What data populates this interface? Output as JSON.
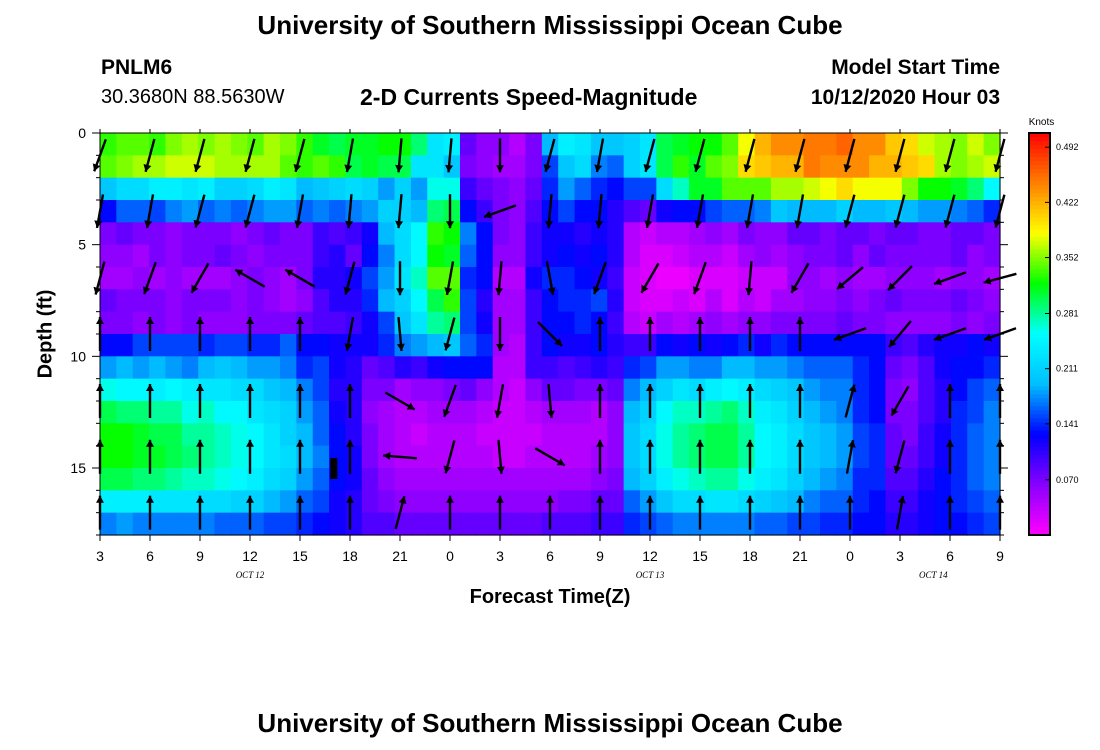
{
  "header": {
    "title": "University of Southern Mississippi Ocean Cube",
    "station_id": "PNLM6",
    "station_coords": "30.3680N 88.5630W",
    "plot_name": "2-D Currents Speed-Magnitude",
    "model_label": "Model Start Time",
    "model_time": "10/12/2020 Hour 03"
  },
  "footer": {
    "title": "University of Southern Mississippi Ocean Cube"
  },
  "chart_data": {
    "type": "heatmap",
    "title": "2-D Currents Speed-Magnitude",
    "xlabel": "Forecast Time(Z)",
    "ylabel": "Depth (ft)",
    "x_ticks": [
      "3",
      "6",
      "9",
      "12",
      "15",
      "18",
      "21",
      "0",
      "3",
      "6",
      "9",
      "12",
      "15",
      "18",
      "21",
      "0",
      "3",
      "6",
      "9"
    ],
    "x_range_hours": [
      0,
      54
    ],
    "date_labels": [
      {
        "text": "OCT 12",
        "hour": 9
      },
      {
        "text": "OCT 13",
        "hour": 33
      },
      {
        "text": "OCT 14",
        "hour": 50
      }
    ],
    "y_ticks": [
      0,
      5,
      10,
      15
    ],
    "ylim": [
      0,
      18
    ],
    "y_inverted": true,
    "colorbar": {
      "units": "Knots",
      "ticks": [
        "0.492",
        "0.422",
        "0.352",
        "0.281",
        "0.211",
        "0.141",
        "0.070"
      ],
      "range": [
        0.0,
        0.51
      ],
      "colors": [
        "#ff00ff",
        "#8800ff",
        "#0000ff",
        "#00bfff",
        "#00ffff",
        "#00ff00",
        "#ffff00",
        "#ff8000",
        "#ff0000"
      ]
    },
    "depths": [
      0.5,
      1.5,
      2.5,
      3.5,
      4.5,
      5.5,
      6.5,
      7.5,
      8.5,
      9.5,
      10.5,
      11.5,
      12.5,
      13.5,
      14.5,
      15.5,
      16.5,
      17.5
    ],
    "hours": [
      0,
      1,
      2,
      3,
      4,
      5,
      6,
      7,
      8,
      9,
      10,
      11,
      12,
      13,
      14,
      15,
      16,
      17,
      18,
      19,
      20,
      21,
      22,
      23,
      24,
      25,
      26,
      27,
      28,
      29,
      30,
      31,
      32,
      33,
      34,
      35,
      36,
      37,
      38,
      39,
      40,
      41,
      42,
      43,
      44,
      45,
      46,
      47,
      48,
      49,
      50,
      51,
      52,
      53,
      54
    ],
    "speed_knots": [
      [
        0.33,
        0.34,
        0.34,
        0.33,
        0.35,
        0.36,
        0.35,
        0.36,
        0.35,
        0.34,
        0.36,
        0.35,
        0.33,
        0.31,
        0.3,
        0.31,
        0.31,
        0.32,
        0.32,
        0.29,
        0.23,
        0.24,
        0.08,
        0.06,
        0.06,
        0.04,
        0.07,
        0.19,
        0.24,
        0.23,
        0.2,
        0.2,
        0.21,
        0.23,
        0.3,
        0.31,
        0.32,
        0.32,
        0.34,
        0.38,
        0.42,
        0.44,
        0.44,
        0.45,
        0.45,
        0.46,
        0.44,
        0.44,
        0.41,
        0.4,
        0.37,
        0.36,
        0.35,
        0.37,
        0.35
      ],
      [
        0.34,
        0.35,
        0.36,
        0.36,
        0.37,
        0.37,
        0.37,
        0.36,
        0.36,
        0.36,
        0.36,
        0.34,
        0.33,
        0.34,
        0.33,
        0.3,
        0.31,
        0.3,
        0.3,
        0.23,
        0.23,
        0.2,
        0.07,
        0.06,
        0.05,
        0.05,
        0.07,
        0.15,
        0.2,
        0.22,
        0.17,
        0.16,
        0.21,
        0.23,
        0.3,
        0.33,
        0.31,
        0.34,
        0.35,
        0.4,
        0.41,
        0.42,
        0.42,
        0.45,
        0.44,
        0.44,
        0.44,
        0.42,
        0.42,
        0.41,
        0.4,
        0.36,
        0.35,
        0.36,
        0.37
      ],
      [
        0.2,
        0.22,
        0.22,
        0.24,
        0.24,
        0.23,
        0.24,
        0.21,
        0.21,
        0.22,
        0.24,
        0.23,
        0.19,
        0.2,
        0.21,
        0.22,
        0.21,
        0.18,
        0.21,
        0.18,
        0.26,
        0.26,
        0.1,
        0.08,
        0.07,
        0.06,
        0.08,
        0.14,
        0.18,
        0.16,
        0.14,
        0.13,
        0.15,
        0.15,
        0.22,
        0.27,
        0.31,
        0.31,
        0.34,
        0.34,
        0.34,
        0.36,
        0.36,
        0.37,
        0.38,
        0.4,
        0.38,
        0.38,
        0.38,
        0.35,
        0.32,
        0.32,
        0.31,
        0.29,
        0.25
      ],
      [
        0.13,
        0.16,
        0.16,
        0.15,
        0.17,
        0.18,
        0.16,
        0.17,
        0.16,
        0.17,
        0.18,
        0.18,
        0.16,
        0.17,
        0.16,
        0.17,
        0.18,
        0.21,
        0.21,
        0.19,
        0.29,
        0.3,
        0.13,
        0.1,
        0.07,
        0.06,
        0.09,
        0.13,
        0.15,
        0.13,
        0.13,
        0.11,
        0.09,
        0.08,
        0.12,
        0.13,
        0.13,
        0.15,
        0.16,
        0.16,
        0.17,
        0.2,
        0.19,
        0.19,
        0.19,
        0.21,
        0.19,
        0.19,
        0.2,
        0.19,
        0.18,
        0.18,
        0.17,
        0.16,
        0.14
      ],
      [
        0.07,
        0.08,
        0.07,
        0.07,
        0.06,
        0.07,
        0.07,
        0.07,
        0.06,
        0.07,
        0.08,
        0.07,
        0.07,
        0.1,
        0.09,
        0.1,
        0.12,
        0.19,
        0.22,
        0.25,
        0.33,
        0.32,
        0.17,
        0.13,
        0.07,
        0.06,
        0.1,
        0.12,
        0.12,
        0.11,
        0.12,
        0.11,
        0.04,
        0.03,
        0.04,
        0.04,
        0.05,
        0.06,
        0.05,
        0.07,
        0.06,
        0.06,
        0.08,
        0.08,
        0.07,
        0.08,
        0.08,
        0.07,
        0.08,
        0.08,
        0.07,
        0.07,
        0.08,
        0.08,
        0.07
      ],
      [
        0.06,
        0.06,
        0.05,
        0.07,
        0.06,
        0.07,
        0.07,
        0.08,
        0.07,
        0.06,
        0.07,
        0.07,
        0.07,
        0.1,
        0.11,
        0.08,
        0.13,
        0.17,
        0.22,
        0.25,
        0.32,
        0.31,
        0.16,
        0.13,
        0.06,
        0.06,
        0.1,
        0.12,
        0.13,
        0.12,
        0.13,
        0.11,
        0.04,
        0.02,
        0.02,
        0.03,
        0.04,
        0.04,
        0.03,
        0.05,
        0.06,
        0.05,
        0.06,
        0.07,
        0.07,
        0.08,
        0.06,
        0.08,
        0.07,
        0.07,
        0.07,
        0.07,
        0.08,
        0.06,
        0.07
      ],
      [
        0.05,
        0.05,
        0.06,
        0.05,
        0.06,
        0.05,
        0.05,
        0.05,
        0.06,
        0.07,
        0.06,
        0.05,
        0.07,
        0.11,
        0.11,
        0.12,
        0.15,
        0.18,
        0.23,
        0.27,
        0.34,
        0.34,
        0.14,
        0.13,
        0.04,
        0.04,
        0.12,
        0.14,
        0.14,
        0.13,
        0.12,
        0.1,
        0.03,
        0.02,
        0.01,
        0.01,
        0.02,
        0.02,
        0.02,
        0.03,
        0.03,
        0.03,
        0.06,
        0.06,
        0.05,
        0.06,
        0.05,
        0.05,
        0.06,
        0.06,
        0.06,
        0.05,
        0.06,
        0.06,
        0.05
      ],
      [
        0.08,
        0.07,
        0.07,
        0.07,
        0.06,
        0.07,
        0.07,
        0.07,
        0.06,
        0.07,
        0.06,
        0.05,
        0.06,
        0.09,
        0.11,
        0.11,
        0.14,
        0.19,
        0.21,
        0.25,
        0.3,
        0.33,
        0.15,
        0.11,
        0.05,
        0.05,
        0.1,
        0.13,
        0.14,
        0.14,
        0.15,
        0.11,
        0.03,
        0.02,
        0.02,
        0.03,
        0.02,
        0.04,
        0.02,
        0.04,
        0.03,
        0.05,
        0.05,
        0.06,
        0.06,
        0.07,
        0.06,
        0.07,
        0.08,
        0.07,
        0.07,
        0.07,
        0.08,
        0.07,
        0.06
      ],
      [
        0.07,
        0.07,
        0.06,
        0.07,
        0.06,
        0.07,
        0.06,
        0.06,
        0.06,
        0.07,
        0.07,
        0.07,
        0.08,
        0.09,
        0.09,
        0.1,
        0.12,
        0.15,
        0.2,
        0.23,
        0.28,
        0.29,
        0.15,
        0.12,
        0.05,
        0.05,
        0.1,
        0.13,
        0.13,
        0.14,
        0.13,
        0.1,
        0.04,
        0.03,
        0.05,
        0.04,
        0.05,
        0.06,
        0.05,
        0.06,
        0.06,
        0.07,
        0.07,
        0.07,
        0.07,
        0.08,
        0.07,
        0.07,
        0.06,
        0.06,
        0.06,
        0.06,
        0.07,
        0.06,
        0.07
      ],
      [
        0.13,
        0.13,
        0.15,
        0.15,
        0.15,
        0.15,
        0.14,
        0.15,
        0.15,
        0.14,
        0.14,
        0.16,
        0.13,
        0.13,
        0.12,
        0.12,
        0.12,
        0.14,
        0.17,
        0.18,
        0.19,
        0.2,
        0.16,
        0.14,
        0.05,
        0.04,
        0.1,
        0.13,
        0.12,
        0.12,
        0.13,
        0.11,
        0.1,
        0.1,
        0.13,
        0.12,
        0.13,
        0.12,
        0.13,
        0.14,
        0.12,
        0.14,
        0.13,
        0.13,
        0.13,
        0.13,
        0.13,
        0.13,
        0.1,
        0.09,
        0.11,
        0.12,
        0.12,
        0.13,
        0.12
      ],
      [
        0.18,
        0.19,
        0.18,
        0.19,
        0.18,
        0.17,
        0.19,
        0.2,
        0.19,
        0.18,
        0.18,
        0.17,
        0.14,
        0.15,
        0.12,
        0.11,
        0.08,
        0.09,
        0.11,
        0.1,
        0.12,
        0.13,
        0.13,
        0.13,
        0.04,
        0.04,
        0.1,
        0.1,
        0.09,
        0.1,
        0.11,
        0.1,
        0.14,
        0.15,
        0.18,
        0.18,
        0.17,
        0.17,
        0.19,
        0.19,
        0.18,
        0.18,
        0.17,
        0.16,
        0.16,
        0.16,
        0.14,
        0.13,
        0.08,
        0.07,
        0.09,
        0.12,
        0.13,
        0.13,
        0.14
      ],
      [
        0.26,
        0.25,
        0.25,
        0.24,
        0.25,
        0.24,
        0.23,
        0.23,
        0.22,
        0.22,
        0.2,
        0.19,
        0.17,
        0.15,
        0.11,
        0.11,
        0.07,
        0.07,
        0.05,
        0.06,
        0.06,
        0.07,
        0.08,
        0.06,
        0.04,
        0.03,
        0.06,
        0.08,
        0.08,
        0.07,
        0.07,
        0.08,
        0.17,
        0.19,
        0.21,
        0.23,
        0.22,
        0.24,
        0.25,
        0.24,
        0.22,
        0.21,
        0.2,
        0.18,
        0.17,
        0.17,
        0.14,
        0.13,
        0.07,
        0.06,
        0.09,
        0.11,
        0.13,
        0.15,
        0.16
      ],
      [
        0.3,
        0.29,
        0.29,
        0.28,
        0.28,
        0.26,
        0.27,
        0.25,
        0.25,
        0.23,
        0.22,
        0.21,
        0.18,
        0.16,
        0.12,
        0.11,
        0.06,
        0.05,
        0.04,
        0.04,
        0.05,
        0.05,
        0.05,
        0.04,
        0.03,
        0.03,
        0.04,
        0.05,
        0.05,
        0.05,
        0.04,
        0.06,
        0.19,
        0.21,
        0.25,
        0.27,
        0.27,
        0.28,
        0.29,
        0.27,
        0.24,
        0.23,
        0.21,
        0.19,
        0.18,
        0.17,
        0.14,
        0.13,
        0.07,
        0.07,
        0.09,
        0.11,
        0.14,
        0.15,
        0.17
      ],
      [
        0.32,
        0.32,
        0.31,
        0.3,
        0.3,
        0.28,
        0.28,
        0.27,
        0.26,
        0.25,
        0.23,
        0.21,
        0.19,
        0.16,
        0.13,
        0.11,
        0.07,
        0.05,
        0.04,
        0.03,
        0.04,
        0.04,
        0.04,
        0.03,
        0.03,
        0.03,
        0.03,
        0.04,
        0.04,
        0.04,
        0.04,
        0.06,
        0.2,
        0.22,
        0.26,
        0.28,
        0.29,
        0.3,
        0.3,
        0.28,
        0.25,
        0.24,
        0.22,
        0.2,
        0.19,
        0.18,
        0.15,
        0.14,
        0.08,
        0.07,
        0.1,
        0.12,
        0.14,
        0.16,
        0.17
      ],
      [
        0.32,
        0.32,
        0.31,
        0.31,
        0.3,
        0.29,
        0.28,
        0.27,
        0.26,
        0.25,
        0.23,
        0.22,
        0.19,
        0.17,
        0.13,
        0.12,
        0.07,
        0.05,
        0.04,
        0.04,
        0.04,
        0.04,
        0.04,
        0.04,
        0.03,
        0.03,
        0.04,
        0.04,
        0.04,
        0.04,
        0.05,
        0.06,
        0.2,
        0.22,
        0.26,
        0.28,
        0.29,
        0.3,
        0.3,
        0.28,
        0.25,
        0.24,
        0.22,
        0.2,
        0.19,
        0.18,
        0.15,
        0.14,
        0.08,
        0.08,
        0.1,
        0.12,
        0.14,
        0.16,
        0.17
      ],
      [
        0.3,
        0.3,
        0.29,
        0.29,
        0.28,
        0.27,
        0.27,
        0.26,
        0.25,
        0.24,
        0.22,
        0.21,
        0.18,
        0.16,
        0.13,
        0.12,
        0.08,
        0.06,
        0.05,
        0.05,
        0.05,
        0.05,
        0.05,
        0.05,
        0.05,
        0.05,
        0.05,
        0.05,
        0.05,
        0.05,
        0.06,
        0.07,
        0.19,
        0.21,
        0.24,
        0.26,
        0.27,
        0.28,
        0.28,
        0.26,
        0.24,
        0.23,
        0.21,
        0.19,
        0.18,
        0.17,
        0.14,
        0.14,
        0.09,
        0.09,
        0.11,
        0.13,
        0.14,
        0.16,
        0.17
      ],
      [
        0.24,
        0.24,
        0.24,
        0.23,
        0.23,
        0.23,
        0.22,
        0.22,
        0.21,
        0.21,
        0.19,
        0.18,
        0.16,
        0.15,
        0.12,
        0.11,
        0.08,
        0.07,
        0.06,
        0.06,
        0.06,
        0.06,
        0.06,
        0.06,
        0.06,
        0.06,
        0.06,
        0.06,
        0.07,
        0.07,
        0.08,
        0.08,
        0.16,
        0.18,
        0.2,
        0.22,
        0.22,
        0.23,
        0.23,
        0.22,
        0.21,
        0.2,
        0.19,
        0.17,
        0.16,
        0.16,
        0.14,
        0.13,
        0.1,
        0.1,
        0.12,
        0.13,
        0.14,
        0.15,
        0.16
      ],
      [
        0.17,
        0.18,
        0.17,
        0.17,
        0.17,
        0.17,
        0.17,
        0.16,
        0.16,
        0.16,
        0.15,
        0.15,
        0.14,
        0.13,
        0.12,
        0.11,
        0.09,
        0.09,
        0.08,
        0.08,
        0.08,
        0.08,
        0.08,
        0.08,
        0.08,
        0.08,
        0.08,
        0.09,
        0.09,
        0.09,
        0.1,
        0.1,
        0.14,
        0.15,
        0.16,
        0.17,
        0.17,
        0.17,
        0.17,
        0.17,
        0.16,
        0.16,
        0.15,
        0.15,
        0.14,
        0.14,
        0.13,
        0.13,
        0.11,
        0.11,
        0.12,
        0.13,
        0.13,
        0.14,
        0.15
      ]
    ],
    "vector_hours": [
      0,
      3,
      6,
      9,
      12,
      15,
      18,
      21,
      24,
      27,
      30,
      33,
      36,
      39,
      42,
      45,
      48,
      51,
      54
    ],
    "vector_depths": [
      1,
      3.5,
      6.5,
      9,
      12,
      14.5,
      17
    ],
    "vectors_deg": [
      [
        200,
        195,
        195,
        195,
        195,
        190,
        185,
        185,
        180,
        195,
        190,
        195,
        195,
        195,
        195,
        195,
        195,
        195,
        195
      ],
      [
        190,
        190,
        195,
        195,
        190,
        185,
        185,
        180,
        250,
        185,
        185,
        190,
        190,
        190,
        190,
        195,
        195,
        195,
        195
      ],
      [
        195,
        200,
        210,
        300,
        300,
        195,
        180,
        190,
        185,
        170,
        200,
        210,
        200,
        185,
        210,
        230,
        225,
        250,
        255
      ],
      [
        0,
        0,
        0,
        0,
        0,
        190,
        175,
        195,
        180,
        135,
        0,
        0,
        0,
        0,
        0,
        250,
        220,
        250,
        250
      ],
      [
        0,
        0,
        0,
        0,
        0,
        0,
        120,
        200,
        190,
        175,
        0,
        0,
        0,
        0,
        0,
        15,
        210,
        0,
        0
      ],
      [
        0,
        0,
        0,
        0,
        0,
        0,
        275,
        195,
        175,
        120,
        0,
        0,
        0,
        0,
        0,
        10,
        195,
        0,
        0
      ],
      [
        0,
        0,
        0,
        0,
        0,
        0,
        15,
        0,
        0,
        0,
        0,
        0,
        0,
        0,
        0,
        0,
        10,
        0,
        0
      ]
    ],
    "annotations": [
      {
        "type": "marker",
        "hour": 14,
        "depth": 15
      }
    ]
  }
}
